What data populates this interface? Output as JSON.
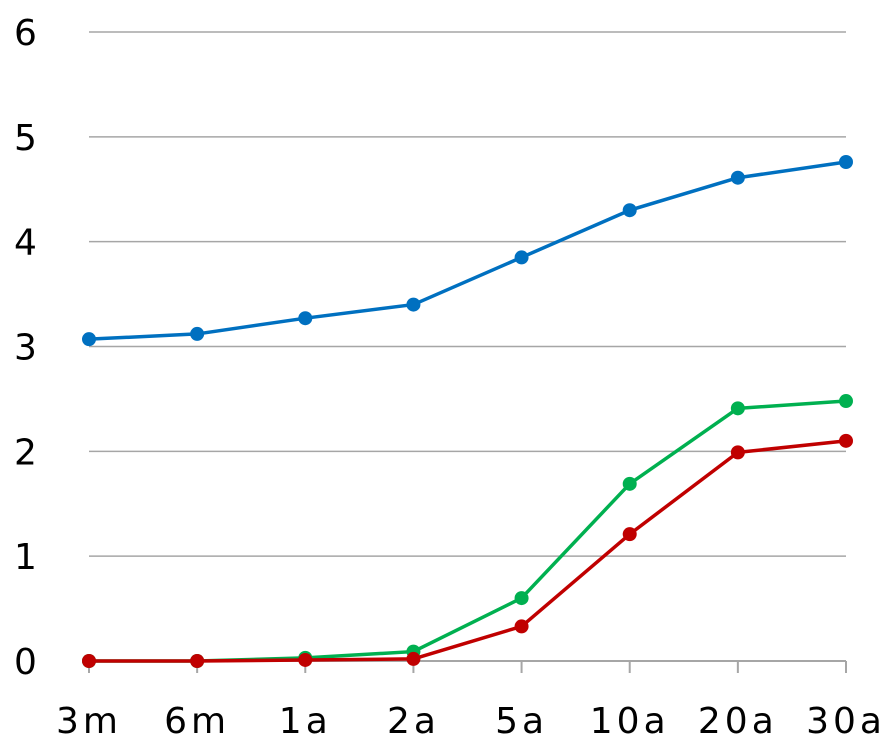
{
  "chart_data": {
    "type": "line",
    "title": "",
    "xlabel": "",
    "ylabel": "",
    "categories": [
      "3m",
      "6m",
      "1a",
      "2a",
      "5a",
      "10a",
      "20a",
      "30a"
    ],
    "ylim": [
      0,
      6
    ],
    "yticks": [
      "0",
      "1",
      "2",
      "3",
      "4",
      "5",
      "6"
    ],
    "grid": true,
    "legend": "none",
    "series": [
      {
        "color": "#0070C0",
        "values": [
          3.07,
          3.12,
          3.27,
          3.4,
          3.85,
          4.3,
          4.61,
          4.76
        ]
      },
      {
        "color": "#00B050",
        "values": [
          0.0,
          0.0,
          0.03,
          0.09,
          0.6,
          1.69,
          2.41,
          2.48
        ]
      },
      {
        "color": "#C00000",
        "values": [
          0.0,
          0.0,
          0.01,
          0.02,
          0.33,
          1.21,
          1.99,
          2.1
        ]
      }
    ]
  }
}
